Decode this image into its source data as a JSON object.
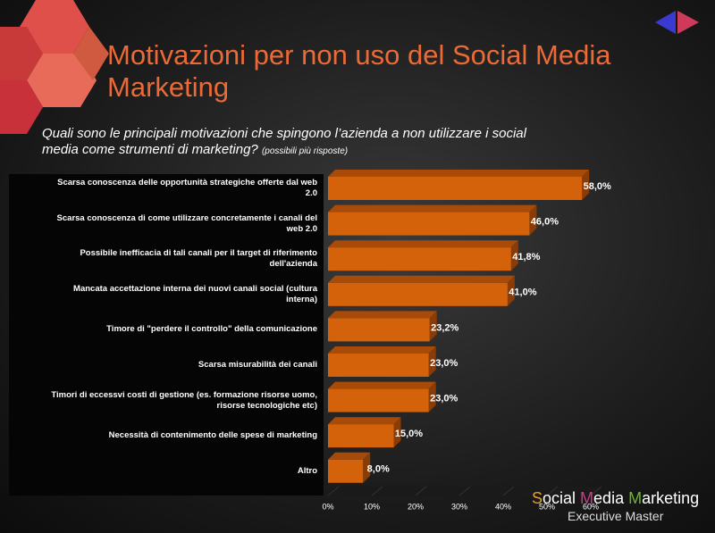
{
  "header": {
    "title": "Motivazioni per non uso del Social Media Marketing",
    "question": "Quali sono le principali motivazioni che spingono l’azienda a non utilizzare i social media come strumenti di marketing?",
    "note": "(possibili più risposte)"
  },
  "chart_data": {
    "type": "hbar",
    "categories": [
      "Scarsa conoscenza delle opportunità strategiche offerte dal web 2.0",
      "Scarsa conoscenza di come utilizzare concretamente i canali del web 2.0",
      "Possibile inefficacia di tali canali per il target di riferimento dell'azienda",
      "Mancata accettazione interna dei nuovi canali social (cultura interna)",
      "Timore di \"perdere il controllo\" della comunicazione",
      "Scarsa misurabilità dei canali",
      "Timori di eccessvi costi di gestione (es. formazione risorse uomo, risorse tecnologiche etc)",
      "Necessità di contenimento delle spese di marketing",
      "Altro"
    ],
    "values": [
      58,
      46,
      41.8,
      41,
      23.2,
      23,
      23,
      15,
      8
    ],
    "value_labels": [
      "58,0%",
      "46,0%",
      "41,8%",
      "41,0%",
      "23,2%",
      "23,0%",
      "23,0%",
      "15,0%",
      "8,0%"
    ],
    "color": "#d4620a",
    "xlim": [
      0,
      60
    ],
    "xticks": [
      {
        "value": 0,
        "label": "0%"
      },
      {
        "value": 10,
        "label": "10%"
      },
      {
        "value": 20,
        "label": "20%"
      },
      {
        "value": 30,
        "label": "30%"
      },
      {
        "value": 40,
        "label": "40%"
      },
      {
        "value": 50,
        "label": "50%"
      },
      {
        "value": 60,
        "label": "60%"
      }
    ],
    "grid": true
  },
  "logo": {
    "parts": [
      "S",
      "ocial ",
      "M",
      "edia ",
      "M",
      "arketing"
    ],
    "subtitle": "Executive Master"
  }
}
